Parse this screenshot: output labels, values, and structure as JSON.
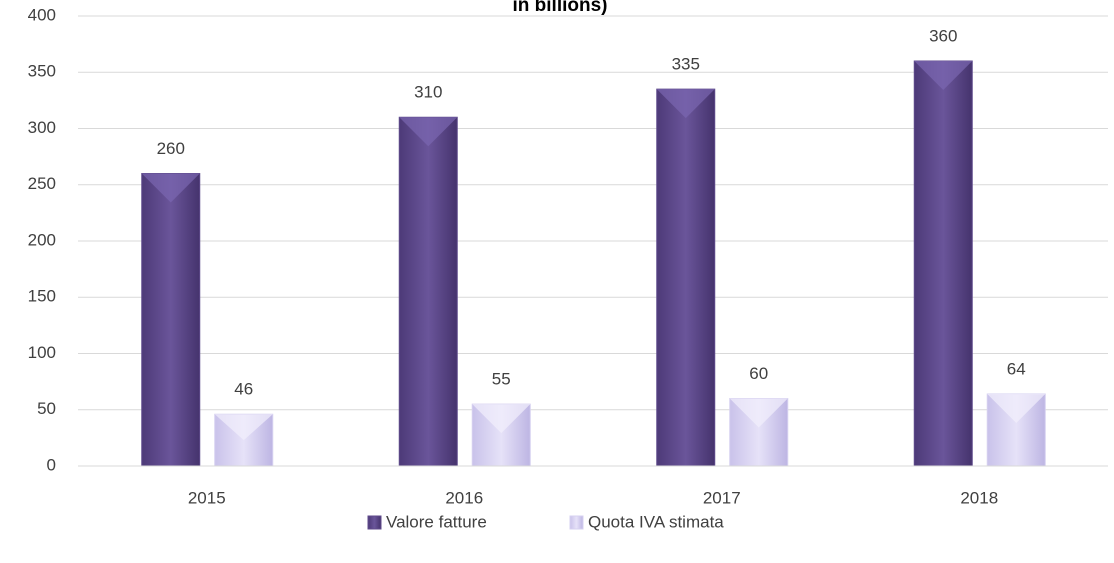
{
  "chart_data": {
    "type": "bar",
    "title": "in billions)",
    "categories": [
      "2015",
      "2016",
      "2017",
      "2018"
    ],
    "series": [
      {
        "name": "Valore fatture",
        "color": "#5f4a8b",
        "values": [
          260,
          310,
          335,
          360
        ]
      },
      {
        "name": "Quota IVA stimata",
        "color": "#d6d0f0",
        "values": [
          46,
          55,
          60,
          64
        ]
      }
    ],
    "ylim": [
      0,
      400
    ],
    "yticks": [
      0,
      50,
      100,
      150,
      200,
      250,
      300,
      350,
      400
    ],
    "grid": true,
    "legend": "bottom"
  }
}
